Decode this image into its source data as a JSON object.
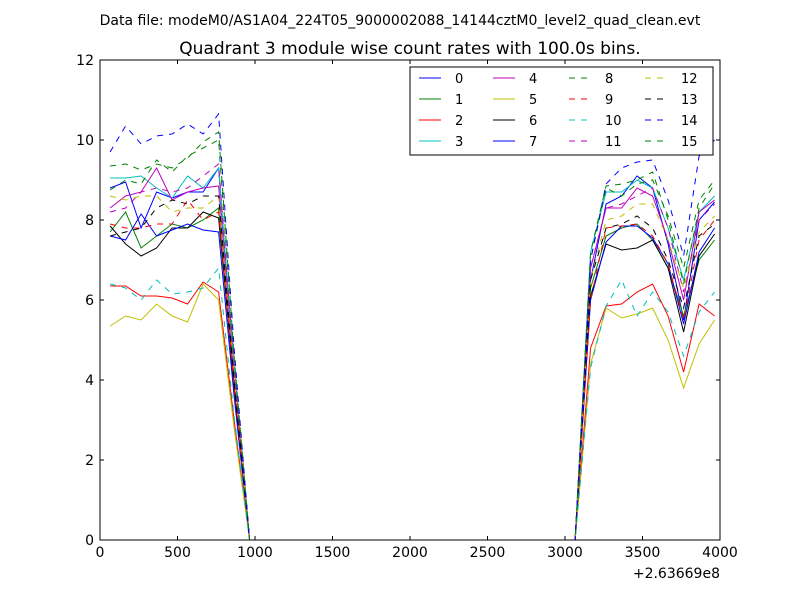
{
  "figure": {
    "suptitle": "Data file: modeM0/AS1A04_224T05_9000002088_14144cztM0_level2_quad_clean.evt"
  },
  "chart_data": {
    "type": "line",
    "title": "Quadrant 3 module wise count rates with 100.0s bins.",
    "xlabel": "",
    "ylabel": "",
    "x_offset_label": "+2.63669e8",
    "xlim": [
      0,
      4000
    ],
    "ylim": [
      0,
      12
    ],
    "xticks": [
      0,
      500,
      1000,
      1500,
      2000,
      2500,
      3000,
      3500,
      4000
    ],
    "yticks": [
      0,
      2,
      4,
      6,
      8,
      10,
      12
    ],
    "grid": false,
    "legend_position": "top-right",
    "x": [
      65,
      165,
      265,
      365,
      465,
      565,
      665,
      765,
      865,
      965,
      1065,
      1165,
      1265,
      1365,
      1465,
      1565,
      1665,
      1765,
      1865,
      1965,
      2065,
      2165,
      2265,
      2365,
      2465,
      2565,
      2665,
      2765,
      2865,
      2965,
      3065,
      3165,
      3265,
      3365,
      3465,
      3565,
      3665,
      3765,
      3865,
      3965
    ],
    "series": [
      {
        "name": "0",
        "color": "#0000ff",
        "dashed": false,
        "values": [
          8.8,
          8.95,
          7.8,
          8.7,
          8.55,
          8.7,
          8.7,
          9.3,
          4.2,
          0,
          0,
          0,
          0,
          0,
          0,
          0,
          0,
          0,
          0,
          0,
          0,
          0,
          0,
          0,
          0,
          0,
          0,
          0,
          0,
          0,
          0,
          6.5,
          8.4,
          8.6,
          9.1,
          8.8,
          7.4,
          5.5,
          8.0,
          8.45
        ]
      },
      {
        "name": "1",
        "color": "#008000",
        "dashed": false,
        "values": [
          7.7,
          8.2,
          7.3,
          7.6,
          7.9,
          7.8,
          8.0,
          8.3,
          3.8,
          0,
          0,
          0,
          0,
          0,
          0,
          0,
          0,
          0,
          0,
          0,
          0,
          0,
          0,
          0,
          0,
          0,
          0,
          0,
          0,
          0,
          0,
          6.3,
          7.6,
          7.8,
          7.9,
          7.5,
          6.8,
          5.6,
          7.0,
          7.5
        ]
      },
      {
        "name": "2",
        "color": "#ff0000",
        "dashed": false,
        "values": [
          6.35,
          6.35,
          6.1,
          6.1,
          6.05,
          5.9,
          6.45,
          6.2,
          3.0,
          0,
          0,
          0,
          0,
          0,
          0,
          0,
          0,
          0,
          0,
          0,
          0,
          0,
          0,
          0,
          0,
          0,
          0,
          0,
          0,
          0,
          0,
          4.8,
          5.85,
          5.9,
          6.2,
          6.4,
          5.6,
          4.2,
          5.9,
          5.6
        ]
      },
      {
        "name": "3",
        "color": "#00bfbf",
        "dashed": false,
        "values": [
          9.05,
          9.05,
          9.1,
          8.8,
          8.55,
          9.1,
          8.8,
          9.3,
          4.3,
          0,
          0,
          0,
          0,
          0,
          0,
          0,
          0,
          0,
          0,
          0,
          0,
          0,
          0,
          0,
          0,
          0,
          0,
          0,
          0,
          0,
          0,
          7.2,
          8.7,
          8.7,
          9.0,
          8.8,
          7.8,
          6.5,
          8.2,
          8.6
        ]
      },
      {
        "name": "4",
        "color": "#bf00bf",
        "dashed": false,
        "values": [
          8.3,
          8.6,
          8.7,
          9.3,
          8.5,
          8.7,
          8.8,
          8.85,
          4.1,
          0,
          0,
          0,
          0,
          0,
          0,
          0,
          0,
          0,
          0,
          0,
          0,
          0,
          0,
          0,
          0,
          0,
          0,
          0,
          0,
          0,
          0,
          6.8,
          8.3,
          8.3,
          8.8,
          8.6,
          7.5,
          6.0,
          8.2,
          8.5
        ]
      },
      {
        "name": "5",
        "color": "#bfbf00",
        "dashed": false,
        "values": [
          5.35,
          5.6,
          5.5,
          5.9,
          5.6,
          5.45,
          6.4,
          6.0,
          2.8,
          0,
          0,
          0,
          0,
          0,
          0,
          0,
          0,
          0,
          0,
          0,
          0,
          0,
          0,
          0,
          0,
          0,
          0,
          0,
          0,
          0,
          0,
          4.4,
          5.8,
          5.55,
          5.65,
          5.8,
          5.0,
          3.8,
          4.9,
          5.5
        ]
      },
      {
        "name": "6",
        "color": "#000000",
        "dashed": false,
        "values": [
          7.85,
          7.4,
          7.1,
          7.3,
          7.8,
          7.8,
          8.2,
          8.05,
          3.9,
          0,
          0,
          0,
          0,
          0,
          0,
          0,
          0,
          0,
          0,
          0,
          0,
          0,
          0,
          0,
          0,
          0,
          0,
          0,
          0,
          0,
          0,
          6.1,
          7.4,
          7.25,
          7.3,
          7.5,
          6.8,
          5.2,
          7.1,
          7.65
        ]
      },
      {
        "name": "7",
        "color": "#0000ff",
        "dashed": false,
        "values": [
          7.6,
          7.5,
          8.15,
          7.6,
          7.75,
          7.9,
          7.75,
          7.7,
          3.6,
          0,
          0,
          0,
          0,
          0,
          0,
          0,
          0,
          0,
          0,
          0,
          0,
          0,
          0,
          0,
          0,
          0,
          0,
          0,
          0,
          0,
          0,
          6.0,
          7.45,
          7.85,
          7.85,
          7.55,
          6.9,
          5.4,
          7.2,
          7.8
        ]
      },
      {
        "name": "8",
        "color": "#008000",
        "dashed": true,
        "values": [
          8.75,
          9.0,
          8.9,
          9.5,
          9.2,
          9.6,
          9.8,
          10.0,
          4.5,
          0,
          0,
          0,
          0,
          0,
          0,
          0,
          0,
          0,
          0,
          0,
          0,
          0,
          0,
          0,
          0,
          0,
          0,
          0,
          0,
          0,
          0,
          7.0,
          8.8,
          8.6,
          8.9,
          9.0,
          8.1,
          6.8,
          8.5,
          9.0
        ]
      },
      {
        "name": "9",
        "color": "#ff0000",
        "dashed": true,
        "values": [
          7.9,
          7.8,
          7.8,
          7.9,
          7.9,
          8.5,
          8.0,
          8.2,
          3.9,
          0,
          0,
          0,
          0,
          0,
          0,
          0,
          0,
          0,
          0,
          0,
          0,
          0,
          0,
          0,
          0,
          0,
          0,
          0,
          0,
          0,
          0,
          6.0,
          7.8,
          7.85,
          7.9,
          7.6,
          6.9,
          5.5,
          7.5,
          8.0
        ]
      },
      {
        "name": "10",
        "color": "#00bfbf",
        "dashed": true,
        "values": [
          6.4,
          6.3,
          6.0,
          6.5,
          6.15,
          6.2,
          6.3,
          6.8,
          3.1,
          0,
          0,
          0,
          0,
          0,
          0,
          0,
          0,
          0,
          0,
          0,
          0,
          0,
          0,
          0,
          0,
          0,
          0,
          0,
          0,
          0,
          0,
          4.3,
          5.85,
          6.5,
          5.6,
          6.2,
          5.7,
          4.6,
          5.7,
          6.2
        ]
      },
      {
        "name": "11",
        "color": "#bf00bf",
        "dashed": true,
        "values": [
          8.2,
          8.3,
          8.7,
          8.8,
          8.7,
          8.8,
          9.1,
          9.4,
          4.3,
          0,
          0,
          0,
          0,
          0,
          0,
          0,
          0,
          0,
          0,
          0,
          0,
          0,
          0,
          0,
          0,
          0,
          0,
          0,
          0,
          0,
          0,
          6.8,
          8.3,
          8.4,
          8.6,
          8.8,
          7.8,
          6.2,
          8.0,
          8.4
        ]
      },
      {
        "name": "12",
        "color": "#bfbf00",
        "dashed": true,
        "values": [
          8.6,
          8.5,
          8.6,
          8.6,
          8.2,
          8.3,
          8.3,
          8.6,
          4.1,
          0,
          0,
          0,
          0,
          0,
          0,
          0,
          0,
          0,
          0,
          0,
          0,
          0,
          0,
          0,
          0,
          0,
          0,
          0,
          0,
          0,
          0,
          6.5,
          8.0,
          8.1,
          8.4,
          8.4,
          7.5,
          6.3,
          7.7,
          8.1
        ]
      },
      {
        "name": "13",
        "color": "#000000",
        "dashed": true,
        "values": [
          7.6,
          7.7,
          7.8,
          8.3,
          8.5,
          8.4,
          8.6,
          8.6,
          4.0,
          0,
          0,
          0,
          0,
          0,
          0,
          0,
          0,
          0,
          0,
          0,
          0,
          0,
          0,
          0,
          0,
          0,
          0,
          0,
          0,
          0,
          0,
          6.5,
          7.8,
          7.9,
          8.1,
          7.8,
          7.0,
          5.8,
          7.6,
          7.9
        ]
      },
      {
        "name": "14",
        "color": "#0000ff",
        "dashed": true,
        "values": [
          9.7,
          10.35,
          9.9,
          10.1,
          10.15,
          10.4,
          10.15,
          10.65,
          4.8,
          0,
          0,
          0,
          0,
          0,
          0,
          0,
          0,
          0,
          0,
          0,
          0,
          0,
          0,
          0,
          0,
          0,
          0,
          0,
          0,
          0,
          0,
          7.0,
          8.9,
          9.3,
          9.45,
          9.5,
          8.5,
          7.1,
          9.6,
          10.0
        ]
      },
      {
        "name": "15",
        "color": "#008000",
        "dashed": true,
        "values": [
          9.35,
          9.4,
          9.25,
          9.4,
          9.3,
          9.55,
          9.95,
          10.2,
          4.6,
          0,
          0,
          0,
          0,
          0,
          0,
          0,
          0,
          0,
          0,
          0,
          0,
          0,
          0,
          0,
          0,
          0,
          0,
          0,
          0,
          0,
          0,
          7.2,
          8.85,
          8.9,
          9.0,
          9.2,
          8.0,
          6.4,
          8.3,
          8.9
        ]
      }
    ]
  }
}
